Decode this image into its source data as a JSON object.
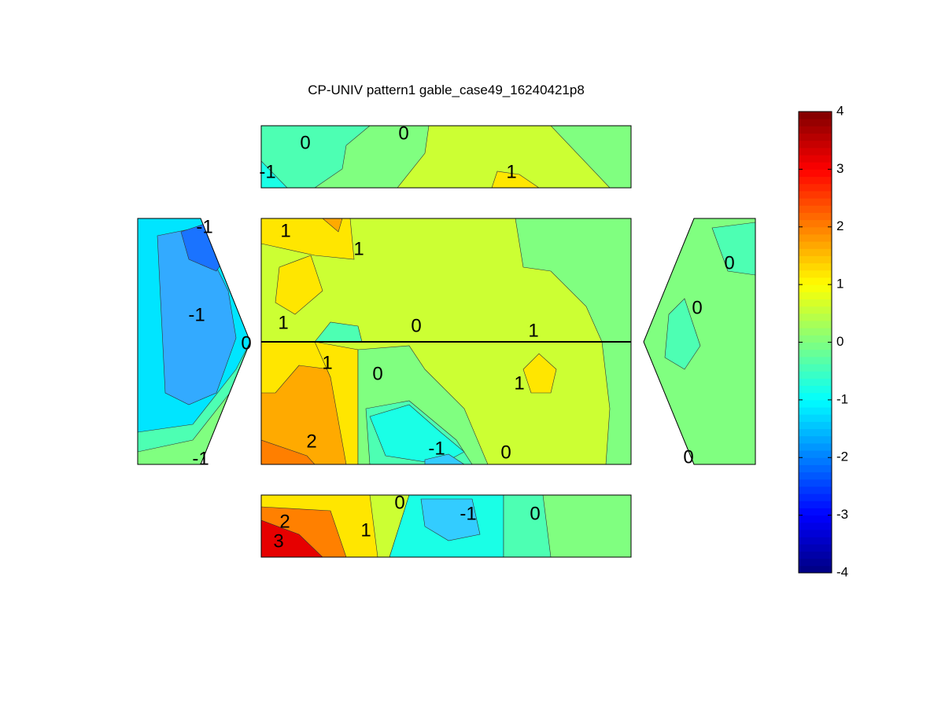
{
  "chart_data": {
    "type": "contour",
    "title": "CP-UNIV pattern1 gable_case49_16240421p8",
    "colorbar": {
      "clim": [
        -4,
        4
      ],
      "ticks": [
        -4,
        -3,
        -2,
        -1,
        0,
        1,
        2,
        3,
        4
      ],
      "colormap": "jet"
    },
    "panels": [
      {
        "contour_labels": [
          0,
          0,
          -1,
          1
        ]
      },
      {
        "contour_labels": [
          -1,
          -1,
          0,
          -1
        ]
      },
      {
        "contour_labels": [
          1,
          1,
          1,
          0,
          1,
          1,
          0,
          1,
          2,
          -1,
          0
        ]
      },
      {
        "contour_labels": [
          0,
          0,
          0
        ]
      },
      {
        "contour_labels": [
          0,
          -1,
          0,
          2,
          1,
          3
        ]
      }
    ]
  }
}
